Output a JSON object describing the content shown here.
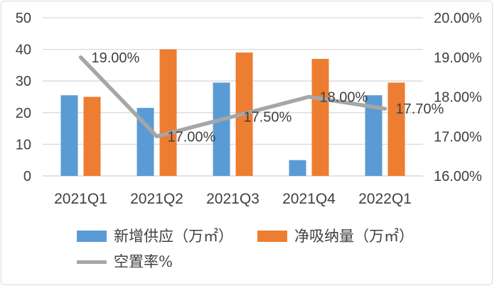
{
  "chart_data": {
    "type": "combo-bar-line",
    "title": "",
    "categories": [
      "2021Q1",
      "2021Q2",
      "2021Q3",
      "2021Q4",
      "2022Q1"
    ],
    "series": [
      {
        "name": "新增供应（万㎡）",
        "type": "bar",
        "axis": "left",
        "color": "#5B9BD5",
        "values": [
          25.5,
          21.5,
          29.5,
          5,
          25.5
        ]
      },
      {
        "name": "净吸纳量（万㎡）",
        "type": "bar",
        "axis": "left",
        "color": "#ED7D31",
        "values": [
          25,
          40,
          39,
          37,
          29.5
        ]
      },
      {
        "name": "空置率%",
        "type": "line",
        "axis": "right",
        "color": "#A6A6A6",
        "values": [
          19.0,
          17.0,
          17.5,
          18.0,
          17.7
        ],
        "data_labels": [
          "19.00%",
          "17.00%",
          "17.50%",
          "18.00%",
          "17.70%"
        ]
      }
    ],
    "axes": {
      "left": {
        "min": 0,
        "max": 50,
        "step": 10,
        "tick_labels": [
          "0",
          "10",
          "20",
          "30",
          "40",
          "50"
        ]
      },
      "right": {
        "min": 16,
        "max": 20,
        "step": 1,
        "tick_labels": [
          "16.00%",
          "17.00%",
          "18.00%",
          "19.00%",
          "20.00%"
        ]
      }
    },
    "grid": true,
    "legend_position": "bottom"
  },
  "legend": {
    "items": [
      {
        "label": "新增供应（万㎡）",
        "color": "#5B9BD5",
        "marker": "rect"
      },
      {
        "label": "净吸纳量（万㎡）",
        "color": "#ED7D31",
        "marker": "rect"
      },
      {
        "label": "空置率%",
        "color": "#A6A6A6",
        "marker": "line"
      }
    ]
  },
  "colors": {
    "text": "#404040",
    "gridline": "#D9D9D9",
    "background": "#FFFFFF",
    "border": "#D9D9D9"
  }
}
